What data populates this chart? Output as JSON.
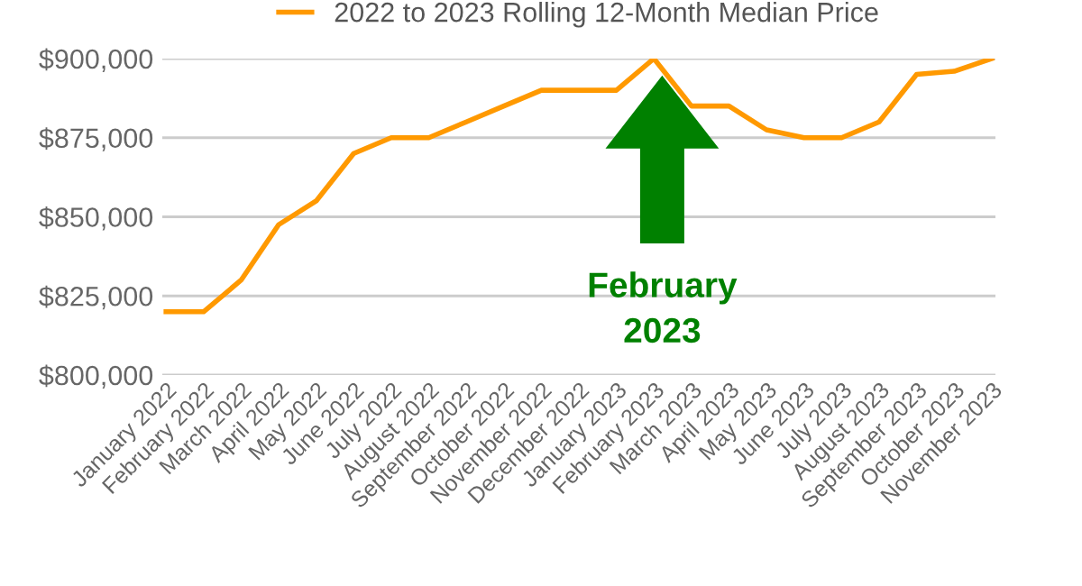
{
  "chart_data": {
    "type": "line",
    "categories": [
      "January 2022",
      "February 2022",
      "March 2022",
      "April 2022",
      "May 2022",
      "June 2022",
      "July 2022",
      "August 2022",
      "September 2022",
      "October 2022",
      "November 2022",
      "December 2022",
      "January 2023",
      "February 2023",
      "March 2023",
      "April 2023",
      "May 2023",
      "June 2023",
      "July 2023",
      "August 2023",
      "September 2023",
      "October 2023",
      "November 2023"
    ],
    "series": [
      {
        "name": "2022 to 2023 Rolling 12-Month Median Price",
        "color": "#ff9900",
        "values": [
          820000,
          820000,
          830000,
          847500,
          855000,
          870000,
          875000,
          875000,
          880000,
          885000,
          890000,
          890000,
          890000,
          900000,
          885000,
          885000,
          877500,
          875000,
          875000,
          880000,
          895000,
          896000,
          900000
        ]
      }
    ],
    "ylim": [
      800000,
      900000
    ],
    "yticks": [
      {
        "value": 800000,
        "label": "$800,000"
      },
      {
        "value": 825000,
        "label": "$825,000"
      },
      {
        "value": 850000,
        "label": "$850,000"
      },
      {
        "value": 875000,
        "label": "$875,000"
      },
      {
        "value": 900000,
        "label": "$900,000"
      }
    ],
    "grid": "y",
    "legend": "top",
    "marker": "none",
    "line_style": "solid",
    "annotations": [
      "February\n2023"
    ]
  }
}
